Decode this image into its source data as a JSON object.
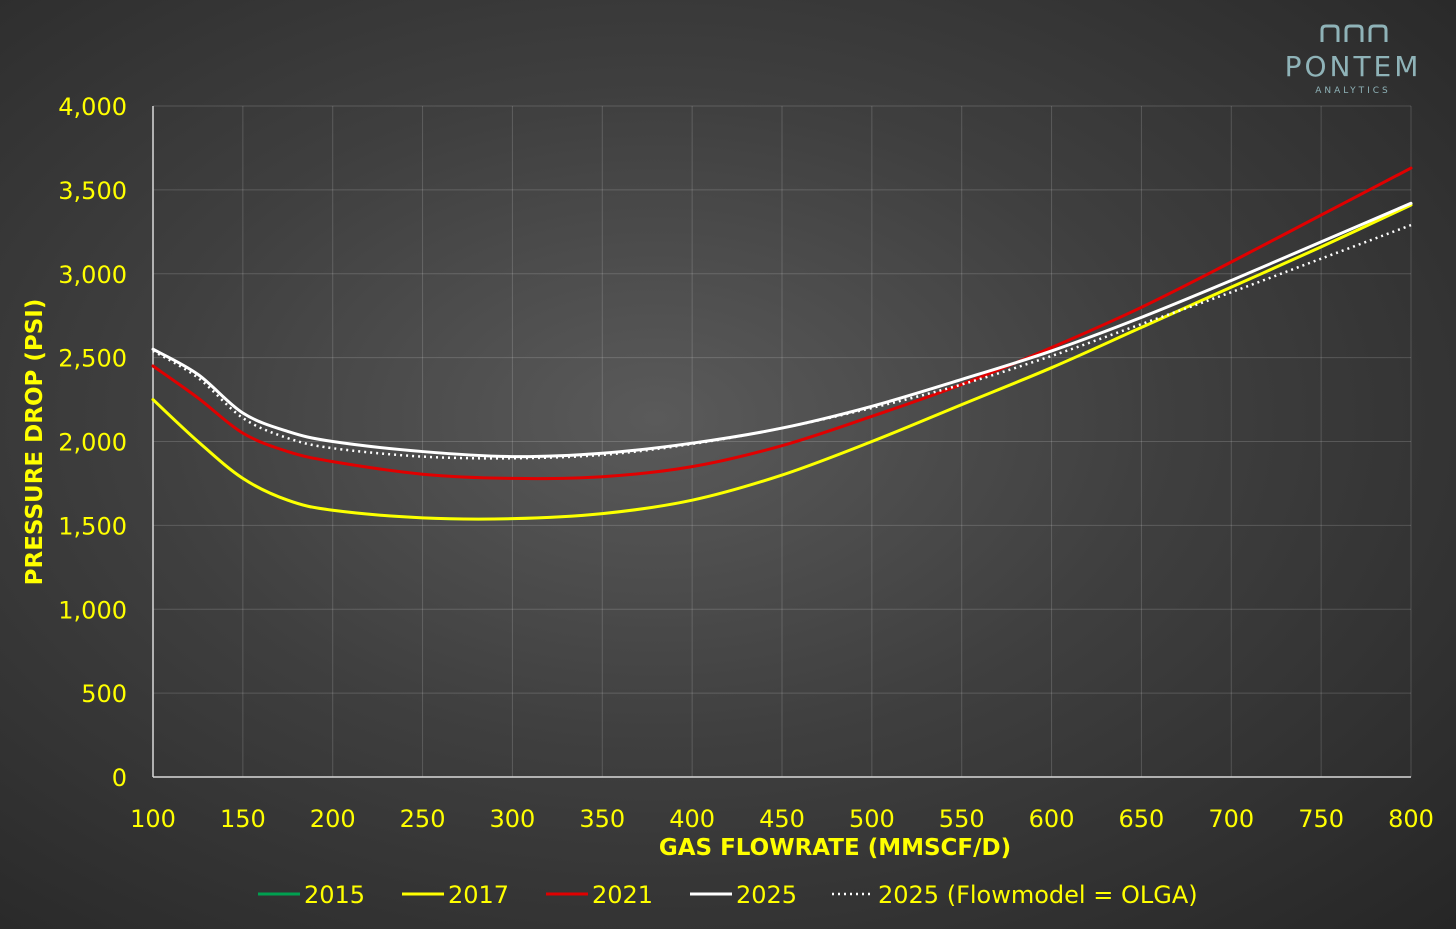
{
  "brand": {
    "name": "PONTEM",
    "tagline": "ANALYTICS"
  },
  "chart_data": {
    "type": "line",
    "title": "",
    "xlabel": "GAS FLOWRATE (MMSCF/D)",
    "ylabel": "PRESSURE DROP (PSI)",
    "xlim": [
      100,
      800
    ],
    "ylim": [
      0,
      4000
    ],
    "x_ticks": [
      "100",
      "150",
      "200",
      "250",
      "300",
      "350",
      "400",
      "450",
      "500",
      "550",
      "600",
      "650",
      "700",
      "750",
      "800"
    ],
    "y_ticks": [
      "0",
      "500",
      "1,000",
      "1,500",
      "2,000",
      "2,500",
      "3,000",
      "3,500",
      "4,000"
    ],
    "grid": true,
    "legend_position": "bottom",
    "x": [
      100,
      125,
      150,
      175,
      200,
      250,
      300,
      350,
      400,
      450,
      500,
      550,
      600,
      650,
      700,
      750,
      800
    ],
    "series": [
      {
        "name": "2015",
        "color": "#00a050",
        "style": "solid",
        "values": [
          2250,
          2000,
          1780,
          1650,
          1590,
          1545,
          1540,
          1570,
          1650,
          1800,
          2000,
          2220,
          2440,
          2680,
          2920,
          3160,
          3410
        ]
      },
      {
        "name": "2017",
        "color": "#ffff00",
        "style": "solid",
        "values": [
          2250,
          2000,
          1780,
          1650,
          1590,
          1545,
          1540,
          1570,
          1650,
          1800,
          2000,
          2220,
          2440,
          2680,
          2920,
          3160,
          3410
        ]
      },
      {
        "name": "2021",
        "color": "#e00000",
        "style": "solid",
        "values": [
          2450,
          2260,
          2050,
          1940,
          1880,
          1805,
          1780,
          1790,
          1850,
          1975,
          2150,
          2340,
          2560,
          2800,
          3070,
          3350,
          3630
        ]
      },
      {
        "name": "2025",
        "color": "#ffffff",
        "style": "solid",
        "values": [
          2550,
          2400,
          2170,
          2060,
          2000,
          1940,
          1910,
          1930,
          1990,
          2080,
          2210,
          2370,
          2540,
          2740,
          2960,
          3190,
          3420
        ]
      },
      {
        "name": "2025 (Flowmodel = OLGA)",
        "color": "#ffffff",
        "style": "dotted",
        "values": [
          2540,
          2380,
          2140,
          2020,
          1960,
          1910,
          1900,
          1920,
          1985,
          2080,
          2200,
          2340,
          2510,
          2700,
          2890,
          3090,
          3290
        ]
      }
    ]
  }
}
